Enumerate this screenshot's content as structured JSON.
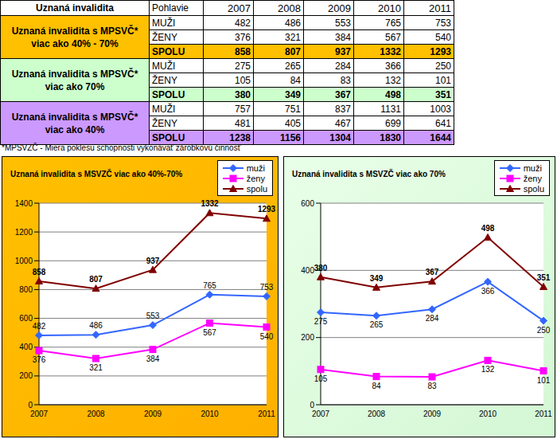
{
  "table": {
    "header": [
      "Uznaná invalidita",
      "Pohlavie",
      "2007",
      "2008",
      "2009",
      "2010",
      "2011"
    ],
    "groups": [
      {
        "label": "Uznaná invalidita s MPSVČ* viac ako 40% - 70%",
        "color": "#ffc000",
        "rows": [
          [
            "MUŽI",
            482,
            486,
            553,
            765,
            753
          ],
          [
            "ŽENY",
            376,
            321,
            384,
            567,
            540
          ],
          [
            "SPOLU",
            858,
            807,
            937,
            1332,
            1293
          ]
        ]
      },
      {
        "label": "Uznaná invalidita s MPSVČ* viac ako 70%",
        "color": "#ccffcc",
        "rows": [
          [
            "MUŽI",
            275,
            265,
            284,
            366,
            250
          ],
          [
            "ŽENY",
            105,
            84,
            83,
            132,
            101
          ],
          [
            "SPOLU",
            380,
            349,
            367,
            498,
            351
          ]
        ]
      },
      {
        "label": "Uznaná invalidita s MPSVČ* viac ako 40%",
        "color": "#cc99ff",
        "rows": [
          [
            "MUŽI",
            757,
            751,
            837,
            1131,
            1003
          ],
          [
            "ŽENY",
            481,
            405,
            467,
            699,
            641
          ],
          [
            "SPOLU",
            1238,
            1156,
            1304,
            1830,
            1644
          ]
        ]
      }
    ]
  },
  "footnote": "*MPSVZČ - Miera poklesu schopnosti vykonávať zárobkovú činnosť",
  "chart_data": [
    {
      "type": "line",
      "title": "Uznaná invalidita s MSVZČ viac ako 40%-70%",
      "categories": [
        "2007",
        "2008",
        "2009",
        "2010",
        "2011"
      ],
      "series": [
        {
          "name": "muži",
          "color": "#3366ff",
          "marker": "diamond",
          "values": [
            482,
            486,
            553,
            765,
            753
          ]
        },
        {
          "name": "ženy",
          "color": "#ff00ff",
          "marker": "square",
          "values": [
            376,
            321,
            384,
            567,
            540
          ]
        },
        {
          "name": "spolu",
          "color": "#800000",
          "marker": "triangle",
          "values": [
            858,
            807,
            937,
            1332,
            1293
          ]
        }
      ],
      "ylim": [
        0,
        1400
      ],
      "yticks": [
        0,
        200,
        400,
        600,
        800,
        1000,
        1200,
        1400
      ],
      "grid": true,
      "legend": "upper right",
      "data_labels": true
    },
    {
      "type": "line",
      "title": "Uznaná invalidita s MSVZČ viac ako 70%",
      "categories": [
        "2007",
        "2008",
        "2009",
        "2010",
        "2011"
      ],
      "series": [
        {
          "name": "muži",
          "color": "#3366ff",
          "marker": "diamond",
          "values": [
            275,
            265,
            284,
            366,
            250
          ]
        },
        {
          "name": "ženy",
          "color": "#ff00ff",
          "marker": "square",
          "values": [
            105,
            84,
            83,
            132,
            101
          ]
        },
        {
          "name": "spolu",
          "color": "#800000",
          "marker": "triangle",
          "values": [
            380,
            349,
            367,
            498,
            351
          ]
        }
      ],
      "ylim": [
        0,
        600
      ],
      "yticks": [
        0,
        200,
        400,
        600
      ],
      "grid": true,
      "legend": "upper right",
      "data_labels": true
    }
  ]
}
